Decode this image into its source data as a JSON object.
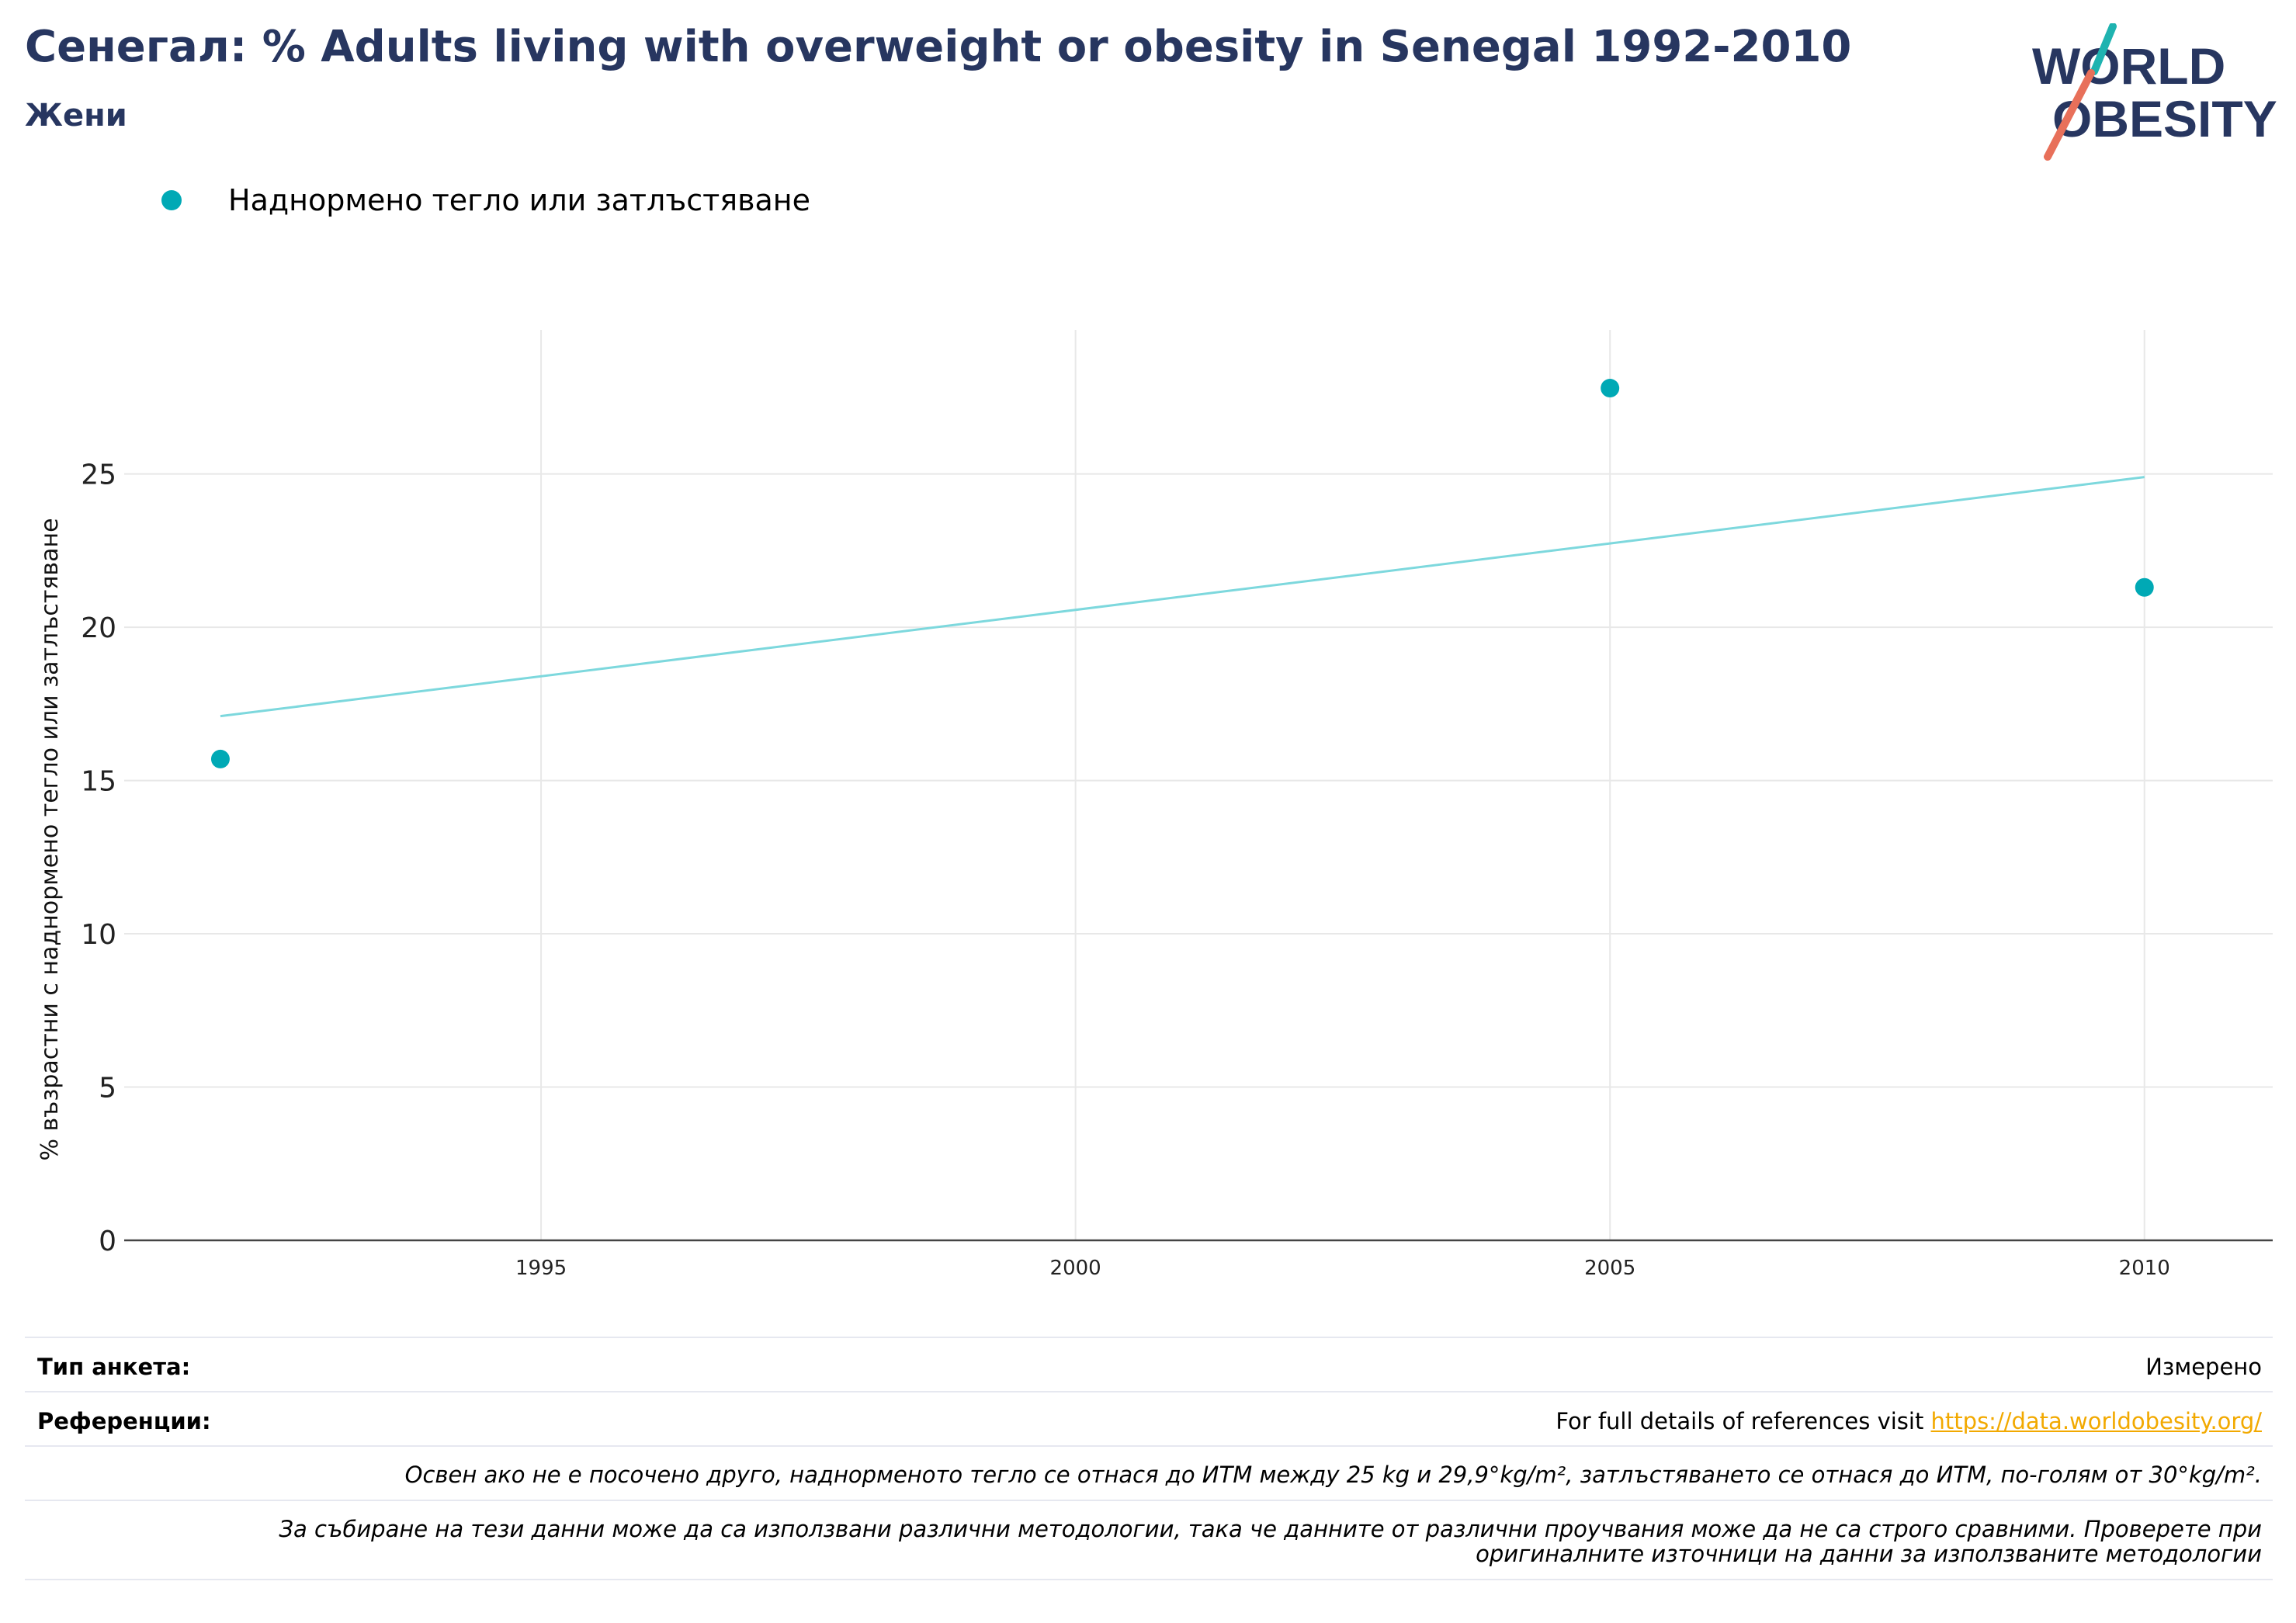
{
  "header": {
    "title": "Сенегал: % Adults living with overweight or obesity in Senegal 1992-2010",
    "subtitle": "Жени"
  },
  "logo": {
    "line1": "WORLD",
    "line2": "OBESITY"
  },
  "colors": {
    "title": "#273660",
    "series": "#00a9b5",
    "trend": "#7dd8dd",
    "logo_teal": "#1fb3b0",
    "logo_coral": "#e8705a",
    "link": "#f2a900",
    "grid": "#e8e8e8"
  },
  "chart_data": {
    "type": "scatter",
    "series": [
      {
        "name": "Наднормено тегло или затлъстяване",
        "x": [
          1992,
          2005,
          2010
        ],
        "y": [
          15.7,
          27.8,
          21.3
        ]
      }
    ],
    "trendline": {
      "x": [
        1992,
        2010
      ],
      "y": [
        17.1,
        24.9
      ]
    },
    "xlabel": "",
    "ylabel": "% възрастни с наднормено тегло или затлъстяване",
    "xlim": [
      1991.1,
      2011.2
    ],
    "ylim": [
      0,
      29.7
    ],
    "x_ticks": [
      1995,
      2000,
      2005,
      2010
    ],
    "y_ticks": [
      0,
      5,
      10,
      15,
      20,
      25
    ],
    "grid": true,
    "legend_position": "top-left"
  },
  "footer": {
    "survey_type_label": "Тип анкета:",
    "survey_type_value": "Измерено",
    "references_label": "Референции:",
    "references_text": "For full details of references visit ",
    "references_link": "https://data.worldobesity.org/",
    "note1": "Освен ако не е посочено друго, наднорменото тегло се отнася до ИТМ между 25 kg и 29,9°kg/m², затлъстяването се отнася до ИТМ, по-голям от 30°kg/m².",
    "note2": "За събиране на тези данни може да са използвани различни методологии, така че данните от различни проучвания може да не са строго сравними. Проверете при оригиналните източници на данни за използваните методологии"
  }
}
